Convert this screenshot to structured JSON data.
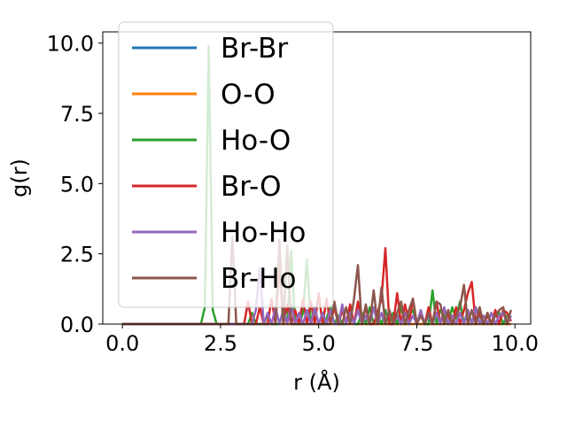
{
  "chart_data": {
    "type": "line",
    "xlabel": "r (Å)",
    "ylabel": "g(r)",
    "xlim": [
      -0.5,
      10.4
    ],
    "ylim": [
      0,
      10.4
    ],
    "xticks": [
      0.0,
      2.5,
      5.0,
      7.5,
      10.0
    ],
    "xtick_labels": [
      "0.0",
      "2.5",
      "5.0",
      "7.5",
      "10.0"
    ],
    "yticks": [
      0.0,
      2.5,
      5.0,
      7.5,
      10.0
    ],
    "ytick_labels": [
      "0.0",
      "2.5",
      "5.0",
      "7.5",
      "10.0"
    ],
    "grid": false,
    "legend_position": "upper-left",
    "series": [
      {
        "name": "Br-Br",
        "color": "#1f77b4",
        "x": [
          0.0,
          9.9
        ],
        "y": [
          0.0,
          0.0
        ]
      },
      {
        "name": "O-O",
        "color": "#ff7f0e",
        "x": [
          0.0,
          9.9
        ],
        "y": [
          0.0,
          0.0
        ]
      },
      {
        "name": "Ho-O",
        "color": "#2ca02c",
        "x": [
          0.0,
          2.0,
          2.1,
          2.2,
          2.3,
          2.4,
          2.5,
          3.2,
          3.3,
          3.4,
          3.6,
          3.7,
          3.8,
          4.0,
          4.1,
          4.2,
          4.3,
          4.4,
          4.5,
          4.6,
          4.7,
          4.8,
          4.9,
          5.0,
          5.1,
          5.2,
          5.3,
          5.4,
          5.5,
          5.6,
          5.7,
          5.8,
          5.9,
          6.0,
          6.1,
          6.2,
          6.3,
          6.4,
          6.5,
          6.6,
          6.7,
          6.8,
          6.9,
          7.0,
          7.1,
          7.2,
          7.3,
          7.4,
          7.5,
          7.6,
          7.7,
          7.8,
          7.9,
          8.0,
          8.1,
          8.2,
          8.3,
          8.4,
          8.5,
          8.6,
          8.7,
          8.8,
          8.9,
          9.0,
          9.1,
          9.2,
          9.3,
          9.4,
          9.5,
          9.6,
          9.7,
          9.8,
          9.9
        ],
        "y": [
          0.0,
          0.0,
          0.6,
          9.9,
          0.5,
          0.0,
          0.0,
          0.0,
          0.4,
          0.0,
          0.0,
          0.3,
          0.0,
          0.0,
          0.5,
          0.0,
          2.6,
          0.0,
          0.0,
          0.4,
          2.3,
          0.0,
          0.5,
          0.0,
          0.0,
          0.2,
          0.6,
          0.0,
          0.3,
          0.0,
          0.0,
          0.5,
          0.0,
          0.0,
          0.4,
          0.0,
          0.6,
          0.0,
          0.3,
          0.0,
          0.5,
          0.0,
          0.4,
          0.0,
          0.6,
          0.0,
          0.3,
          0.5,
          0.0,
          0.4,
          0.0,
          0.0,
          1.2,
          0.0,
          0.5,
          0.3,
          0.0,
          0.6,
          0.2,
          0.8,
          0.0,
          0.5,
          0.0,
          0.6,
          0.3,
          0.0,
          0.4,
          0.0,
          0.3,
          0.4,
          0.0,
          0.3,
          0.2
        ]
      },
      {
        "name": "Br-O",
        "color": "#d62728",
        "x": [
          0.0,
          3.1,
          3.2,
          3.3,
          3.4,
          3.5,
          3.6,
          3.7,
          3.8,
          3.9,
          4.0,
          4.1,
          4.2,
          4.3,
          4.4,
          4.5,
          4.6,
          4.7,
          4.8,
          4.9,
          5.0,
          5.1,
          5.2,
          5.3,
          5.4,
          5.5,
          5.6,
          5.7,
          5.8,
          5.9,
          6.0,
          6.1,
          6.2,
          6.3,
          6.4,
          6.5,
          6.6,
          6.7,
          6.8,
          6.9,
          7.0,
          7.1,
          7.2,
          7.3,
          7.4,
          7.5,
          7.6,
          7.7,
          7.8,
          7.9,
          8.0,
          8.1,
          8.2,
          8.3,
          8.4,
          8.5,
          8.6,
          8.7,
          8.8,
          8.9,
          9.0,
          9.1,
          9.2,
          9.3,
          9.4,
          9.5,
          9.6,
          9.7,
          9.8,
          9.9
        ],
        "y": [
          0.0,
          0.0,
          0.8,
          0.0,
          0.0,
          0.6,
          0.0,
          0.0,
          0.9,
          0.0,
          2.1,
          0.0,
          0.7,
          0.0,
          0.5,
          0.0,
          0.9,
          0.0,
          0.8,
          0.0,
          1.1,
          0.0,
          0.9,
          0.0,
          0.6,
          0.0,
          0.5,
          0.0,
          0.7,
          0.0,
          0.8,
          0.0,
          0.6,
          0.0,
          0.0,
          0.4,
          0.9,
          2.7,
          0.0,
          0.0,
          1.1,
          0.0,
          0.7,
          0.0,
          0.9,
          0.0,
          0.4,
          0.0,
          0.6,
          0.0,
          0.8,
          0.0,
          0.5,
          0.3,
          0.0,
          0.6,
          0.0,
          0.5,
          1.1,
          1.5,
          0.0,
          0.4,
          0.0,
          0.3,
          0.0,
          0.5,
          0.0,
          0.5,
          0.4,
          0.1
        ]
      },
      {
        "name": "Ho-Ho",
        "color": "#9467bd",
        "x": [
          0.0,
          3.3,
          3.4,
          3.5,
          3.6,
          3.7,
          3.8,
          3.9,
          4.0,
          4.1,
          4.2,
          4.3,
          4.4,
          4.5,
          4.6,
          4.7,
          4.8,
          4.9,
          5.0,
          5.1,
          5.2,
          5.3,
          5.4,
          5.5,
          5.6,
          5.7,
          5.8,
          5.9,
          6.0,
          6.1,
          6.2,
          6.3,
          6.4,
          6.5,
          6.6,
          6.7,
          6.8,
          6.9,
          7.0,
          7.1,
          7.2,
          7.3,
          7.4,
          7.5,
          7.6,
          7.7,
          7.8,
          7.9,
          8.0,
          8.1,
          8.2,
          8.3,
          8.4,
          8.5,
          8.6,
          8.7,
          8.8,
          8.9,
          9.0,
          9.1,
          9.2,
          9.3,
          9.4,
          9.5,
          9.6,
          9.7,
          9.8,
          9.9
        ],
        "y": [
          0.0,
          0.0,
          0.5,
          2.0,
          0.0,
          0.4,
          0.0,
          0.6,
          0.0,
          0.5,
          0.0,
          0.7,
          0.0,
          0.4,
          0.0,
          0.5,
          0.0,
          0.6,
          0.0,
          0.4,
          0.0,
          0.5,
          0.0,
          0.0,
          0.7,
          0.0,
          0.4,
          0.0,
          0.5,
          0.0,
          0.3,
          0.0,
          0.6,
          0.0,
          0.4,
          0.0,
          0.5,
          0.0,
          0.3,
          0.0,
          0.4,
          0.0,
          0.3,
          0.0,
          0.5,
          0.0,
          0.3,
          0.0,
          0.4,
          0.0,
          0.6,
          0.0,
          0.3,
          0.0,
          0.4,
          0.0,
          0.5,
          0.0,
          0.6,
          0.0,
          0.3,
          0.0,
          0.4,
          0.0,
          0.3,
          0.4,
          0.0,
          0.3
        ]
      },
      {
        "name": "Br-Ho",
        "color": "#8c564b",
        "x": [
          0.0,
          2.7,
          2.8,
          2.9,
          3.0,
          3.9,
          4.0,
          4.1,
          4.2,
          4.3,
          5.3,
          5.4,
          5.5,
          5.6,
          5.7,
          5.8,
          5.9,
          6.0,
          6.1,
          6.2,
          6.3,
          6.4,
          6.5,
          6.6,
          6.7,
          6.8,
          6.9,
          7.0,
          7.1,
          7.2,
          7.3,
          7.4,
          7.5,
          7.6,
          7.7,
          7.8,
          7.9,
          8.0,
          8.1,
          8.2,
          8.3,
          8.4,
          8.5,
          8.6,
          8.7,
          8.8,
          8.9,
          9.0,
          9.1,
          9.2,
          9.3,
          9.4,
          9.5,
          9.6,
          9.7,
          9.8,
          9.9
        ],
        "y": [
          0.0,
          0.0,
          3.1,
          0.0,
          0.0,
          0.0,
          3.0,
          0.0,
          2.8,
          0.0,
          0.0,
          0.8,
          0.0,
          0.0,
          0.6,
          0.0,
          0.9,
          2.1,
          0.0,
          0.7,
          0.0,
          1.2,
          0.0,
          1.3,
          0.0,
          0.5,
          0.0,
          0.4,
          0.8,
          0.0,
          0.5,
          0.9,
          0.0,
          0.3,
          0.0,
          0.4,
          0.0,
          0.8,
          0.7,
          0.0,
          0.5,
          0.0,
          0.3,
          0.6,
          1.4,
          0.0,
          0.5,
          0.0,
          0.6,
          0.0,
          0.4,
          0.0,
          0.3,
          0.5,
          0.6,
          0.0,
          0.5
        ]
      }
    ]
  }
}
